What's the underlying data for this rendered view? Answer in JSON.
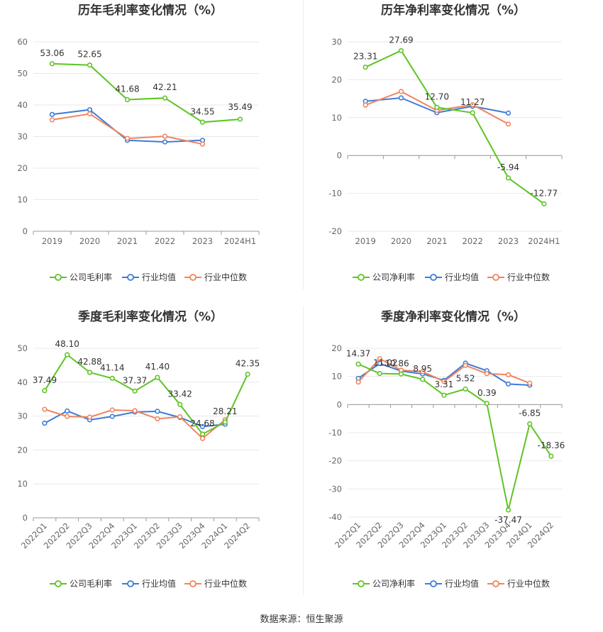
{
  "footer": "数据来源：恒生聚源",
  "colors": {
    "company": "#5ec424",
    "industry_avg": "#3d7bd8",
    "industry_median": "#f0845c"
  },
  "chart_data": [
    {
      "type": "line",
      "title": "历年毛利率变化情况（%）",
      "categories": [
        "2019",
        "2020",
        "2021",
        "2022",
        "2023",
        "2024H1"
      ],
      "ylim": [
        0,
        60
      ],
      "yticks": [
        0,
        10,
        20,
        30,
        40,
        50,
        60
      ],
      "rotate_x": false,
      "grid": true,
      "legend": "bottom",
      "series": [
        {
          "name": "公司毛利率",
          "key": "company",
          "values": [
            53.06,
            52.65,
            41.68,
            42.21,
            34.55,
            35.49
          ],
          "labels": [
            "53.06",
            "52.65",
            "41.68",
            "42.21",
            "34.55",
            "35.49"
          ]
        },
        {
          "name": "行业均值",
          "key": "industry_avg",
          "values": [
            37.0,
            38.5,
            28.8,
            28.3,
            28.8,
            null
          ]
        },
        {
          "name": "行业中位数",
          "key": "industry_median",
          "values": [
            35.3,
            37.2,
            29.4,
            30.1,
            27.6,
            null
          ]
        }
      ]
    },
    {
      "type": "line",
      "title": "历年净利率变化情况（%）",
      "categories": [
        "2019",
        "2020",
        "2021",
        "2022",
        "2023",
        "2024H1"
      ],
      "ylim": [
        -20,
        30
      ],
      "yticks": [
        -20,
        -10,
        0,
        10,
        20,
        30
      ],
      "rotate_x": false,
      "grid": true,
      "legend": "bottom",
      "series": [
        {
          "name": "公司净利率",
          "key": "company",
          "values": [
            23.31,
            27.69,
            12.7,
            11.27,
            -5.94,
            -12.77
          ],
          "labels": [
            "23.31",
            "27.69",
            "12.70",
            "11.27",
            "-5.94",
            "-12.77"
          ]
        },
        {
          "name": "行业均值",
          "key": "industry_avg",
          "values": [
            14.3,
            15.2,
            11.3,
            13.0,
            11.2,
            null
          ]
        },
        {
          "name": "行业中位数",
          "key": "industry_median",
          "values": [
            13.3,
            16.9,
            11.9,
            13.4,
            8.3,
            null
          ]
        }
      ]
    },
    {
      "type": "line",
      "title": "季度毛利率变化情况（%）",
      "categories": [
        "2022Q1",
        "2022Q2",
        "2022Q3",
        "2022Q4",
        "2023Q1",
        "2023Q2",
        "2023Q3",
        "2023Q4",
        "2024Q1",
        "2024Q2"
      ],
      "ylim": [
        0,
        50
      ],
      "yticks": [
        0,
        10,
        20,
        30,
        40,
        50
      ],
      "rotate_x": true,
      "grid": true,
      "legend": "bottom",
      "series": [
        {
          "name": "公司毛利率",
          "key": "company",
          "values": [
            37.49,
            48.1,
            42.88,
            41.14,
            37.37,
            41.4,
            33.42,
            24.68,
            28.21,
            42.35
          ],
          "labels": [
            "37.49",
            "48.10",
            "42.88",
            "41.14",
            "37.37",
            "41.40",
            "33.42",
            "24.68",
            "28.21",
            "42.35"
          ]
        },
        {
          "name": "行业均值",
          "key": "industry_avg",
          "values": [
            27.9,
            31.5,
            28.9,
            29.9,
            31.2,
            31.4,
            29.6,
            26.9,
            27.6,
            null
          ]
        },
        {
          "name": "行业中位数",
          "key": "industry_median",
          "values": [
            32.0,
            29.9,
            29.7,
            31.8,
            31.6,
            29.2,
            29.8,
            23.4,
            28.9,
            null
          ]
        }
      ]
    },
    {
      "type": "line",
      "title": "季度净利率变化情况（%）",
      "categories": [
        "2022Q1",
        "2022Q2",
        "2022Q3",
        "2022Q4",
        "2023Q1",
        "2023Q2",
        "2023Q3",
        "2023Q4",
        "2024Q1",
        "2024Q2"
      ],
      "ylim": [
        -40,
        20
      ],
      "yticks": [
        -40,
        -30,
        -20,
        -10,
        0,
        10,
        20
      ],
      "rotate_x": true,
      "grid": true,
      "legend": "bottom",
      "series": [
        {
          "name": "公司净利率",
          "key": "company",
          "values": [
            14.37,
            11.02,
            10.86,
            8.95,
            3.31,
            5.52,
            0.39,
            -37.47,
            -6.85,
            -18.36
          ],
          "labels": [
            "14.37",
            "11.02",
            "10.86",
            "8.95",
            "3.31",
            "5.52",
            "0.39",
            "-37.47",
            "-6.85",
            "-18.36"
          ]
        },
        {
          "name": "行业均值",
          "key": "industry_avg",
          "values": [
            9.3,
            14.6,
            11.9,
            10.9,
            8.6,
            14.7,
            12.0,
            7.3,
            6.9,
            null
          ]
        },
        {
          "name": "行业中位数",
          "key": "industry_median",
          "values": [
            8.0,
            16.3,
            12.2,
            11.7,
            8.2,
            13.9,
            11.0,
            10.6,
            7.6,
            null
          ]
        }
      ]
    }
  ]
}
